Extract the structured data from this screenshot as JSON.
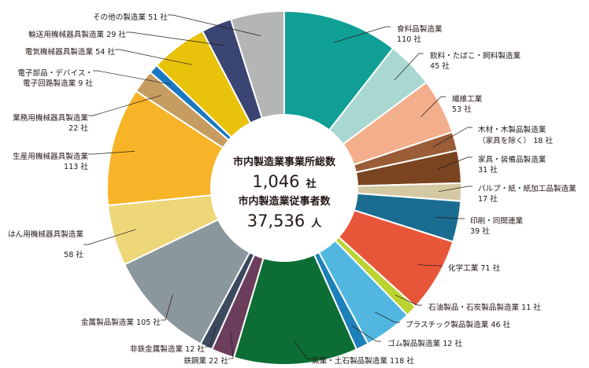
{
  "chart_data": {
    "type": "pie",
    "title": "",
    "total_label": "市内製造業事業所総数",
    "total_value": "1,046",
    "total_unit": "社",
    "employees_label": "市内製造業従事者数",
    "employees_value": "37,536",
    "employees_unit": "人",
    "slices": [
      {
        "name": "食料品製造業",
        "value": 110,
        "value_label": "110 社",
        "color": "#0f9f95"
      },
      {
        "name": "飲料・たばこ・飼料製造業",
        "value": 45,
        "value_label": "45 社",
        "color": "#a9d7d1"
      },
      {
        "name": "繊維工業",
        "value": 53,
        "value_label": "53 社",
        "color": "#f3ae8b"
      },
      {
        "name": "木材・木製品製造業",
        "name2": "（家具を除く）",
        "value": 18,
        "value_label": "18 社",
        "color": "#9a5d37"
      },
      {
        "name": "家具・装備品製造業",
        "value": 31,
        "value_label": "31 社",
        "color": "#7a4420"
      },
      {
        "name": "パルプ・紙・紙加工品製造業",
        "value": 17,
        "value_label": "17 社",
        "color": "#d5c9a4"
      },
      {
        "name": "印刷・同関連業",
        "value": 39,
        "value_label": "39 社",
        "color": "#1a6c90"
      },
      {
        "name": "化学工業",
        "value": 71,
        "value_label": "71 社",
        "color": "#e8563a"
      },
      {
        "name": "石油製品・石炭製品製造業",
        "value": 11,
        "value_label": "11 社",
        "color": "#bcd432"
      },
      {
        "name": "プラスチック製品製造業",
        "value": 46,
        "value_label": "46 社",
        "color": "#51b7e0"
      },
      {
        "name": "ゴム製品製造業",
        "value": 12,
        "value_label": "12 社",
        "color": "#1e80b8"
      },
      {
        "name": "窯業・土石製品製造業",
        "value": 118,
        "value_label": "118 社",
        "color": "#0c6e34"
      },
      {
        "name": "鉄鋼業",
        "value": 22,
        "value_label": "22 社",
        "color": "#6b3e5c"
      },
      {
        "name": "非鉄金属製造業",
        "value": 12,
        "value_label": "12 社",
        "color": "#3c4a5f"
      },
      {
        "name": "金属製品製造業",
        "value": 105,
        "value_label": "105 社",
        "color": "#8a979c"
      },
      {
        "name": "はん用機械器具製造業",
        "value": 58,
        "value_label": "58 社",
        "color": "#eed779"
      },
      {
        "name": "生産用機械器具製造業",
        "value": 113,
        "value_label": "113 社",
        "color": "#f8b428"
      },
      {
        "name": "業務用機械器具製造業",
        "value": 22,
        "value_label": "22 社",
        "color": "#c69c60"
      },
      {
        "name": "電子部品・デバイス・",
        "name2": "電子回路製造業",
        "value": 9,
        "value_label": "9 社",
        "color": "#1978c0"
      },
      {
        "name": "電気機械器具製造業",
        "value": 54,
        "value_label": "54 社",
        "color": "#e8c20b"
      },
      {
        "name": "輸送用機械器具製造業",
        "value": 29,
        "value_label": "29 社",
        "color": "#3a4573"
      },
      {
        "name": "その他の製造業",
        "value": 51,
        "value_label": "51 社",
        "color": "#b4b6b5"
      }
    ]
  }
}
